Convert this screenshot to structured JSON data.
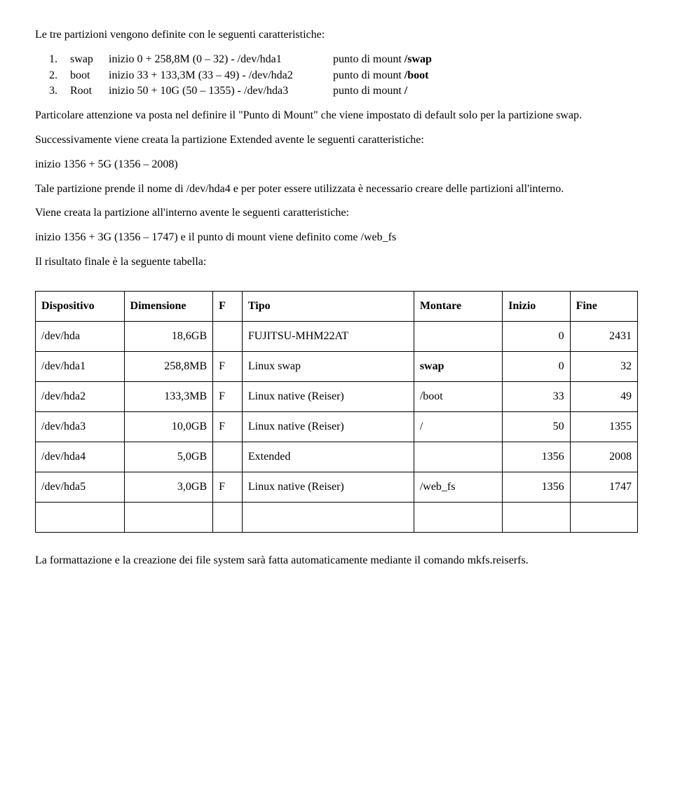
{
  "intro": "Le  tre partizioni vengono definite con le seguenti caratteristiche:",
  "partList": [
    {
      "num": "1.",
      "label": "swap",
      "spec": "inizio 0 + 258,8M (0 – 32) - /dev/hda1",
      "mountPre": "punto di mount ",
      "mountB": "/swap"
    },
    {
      "num": "2.",
      "label": "boot",
      "spec": "inizio 33 + 133,3M (33 – 49) - /dev/hda2",
      "mountPre": "punto di mount ",
      "mountB": "/boot"
    },
    {
      "num": "3.",
      "label": "Root",
      "spec": "inizio 50 + 10G (50 – 1355) - /dev/hda3",
      "mountPre": "punto di mount ",
      "mountB": "/"
    }
  ],
  "p1": "Particolare attenzione va posta nel definire il \"Punto di Mount\" che viene impostato di default solo per la partizione swap.",
  "p2": "Successivamente viene creata la partizione Extended  avente le seguenti caratteristiche:",
  "p3": "inizio 1356 + 5G   (1356 – 2008)",
  "p4": "Tale partizione prende il nome di /dev/hda4 e per poter essere utilizzata è necessario creare delle partizioni all'interno.",
  "p5": "Viene creata la partizione all'interno avente le seguenti caratteristiche:",
  "p6": "inizio 1356 + 3G   (1356 – 1747) e il punto di mount viene definito come /web_fs",
  "p7": "Il risultato finale è la seguente tabella:",
  "table": {
    "headers": [
      "Dispositivo",
      "Dimensione",
      "F",
      "Tipo",
      "Montare",
      "Inizio",
      "Fine"
    ],
    "rows": [
      {
        "disp": "/dev/hda",
        "dim": "18,6GB",
        "f": "",
        "tipo": "FUJITSU-MHM22AT",
        "mont": "",
        "ini": "0",
        "fine": "2431"
      },
      {
        "disp": "/dev/hda1",
        "dim": "258,8MB",
        "f": "F",
        "tipo": "Linux swap",
        "mont": "swap",
        "montBold": true,
        "ini": "0",
        "fine": "32"
      },
      {
        "disp": "/dev/hda2",
        "dim": "133,3MB",
        "f": "F",
        "tipo": "Linux native (Reiser)",
        "mont": "/boot",
        "ini": "33",
        "fine": "49"
      },
      {
        "disp": "/dev/hda3",
        "dim": "10,0GB",
        "f": "F",
        "tipo": "Linux native (Reiser)",
        "mont": "/",
        "ini": "50",
        "fine": "1355"
      },
      {
        "disp": "/dev/hda4",
        "dim": "5,0GB",
        "f": "",
        "tipo": "Extended",
        "mont": "",
        "ini": "1356",
        "fine": "2008"
      },
      {
        "disp": "/dev/hda5",
        "dim": "3,0GB",
        "f": "F",
        "tipo": "Linux native (Reiser)",
        "mont": "/web_fs",
        "ini": "1356",
        "fine": "1747"
      },
      {
        "disp": "",
        "dim": "",
        "f": "",
        "tipo": "",
        "mont": "",
        "ini": "",
        "fine": ""
      }
    ]
  },
  "p8": "La formattazione e la creazione dei file system sarà fatta automaticamente mediante il comando mkfs.reiserfs."
}
